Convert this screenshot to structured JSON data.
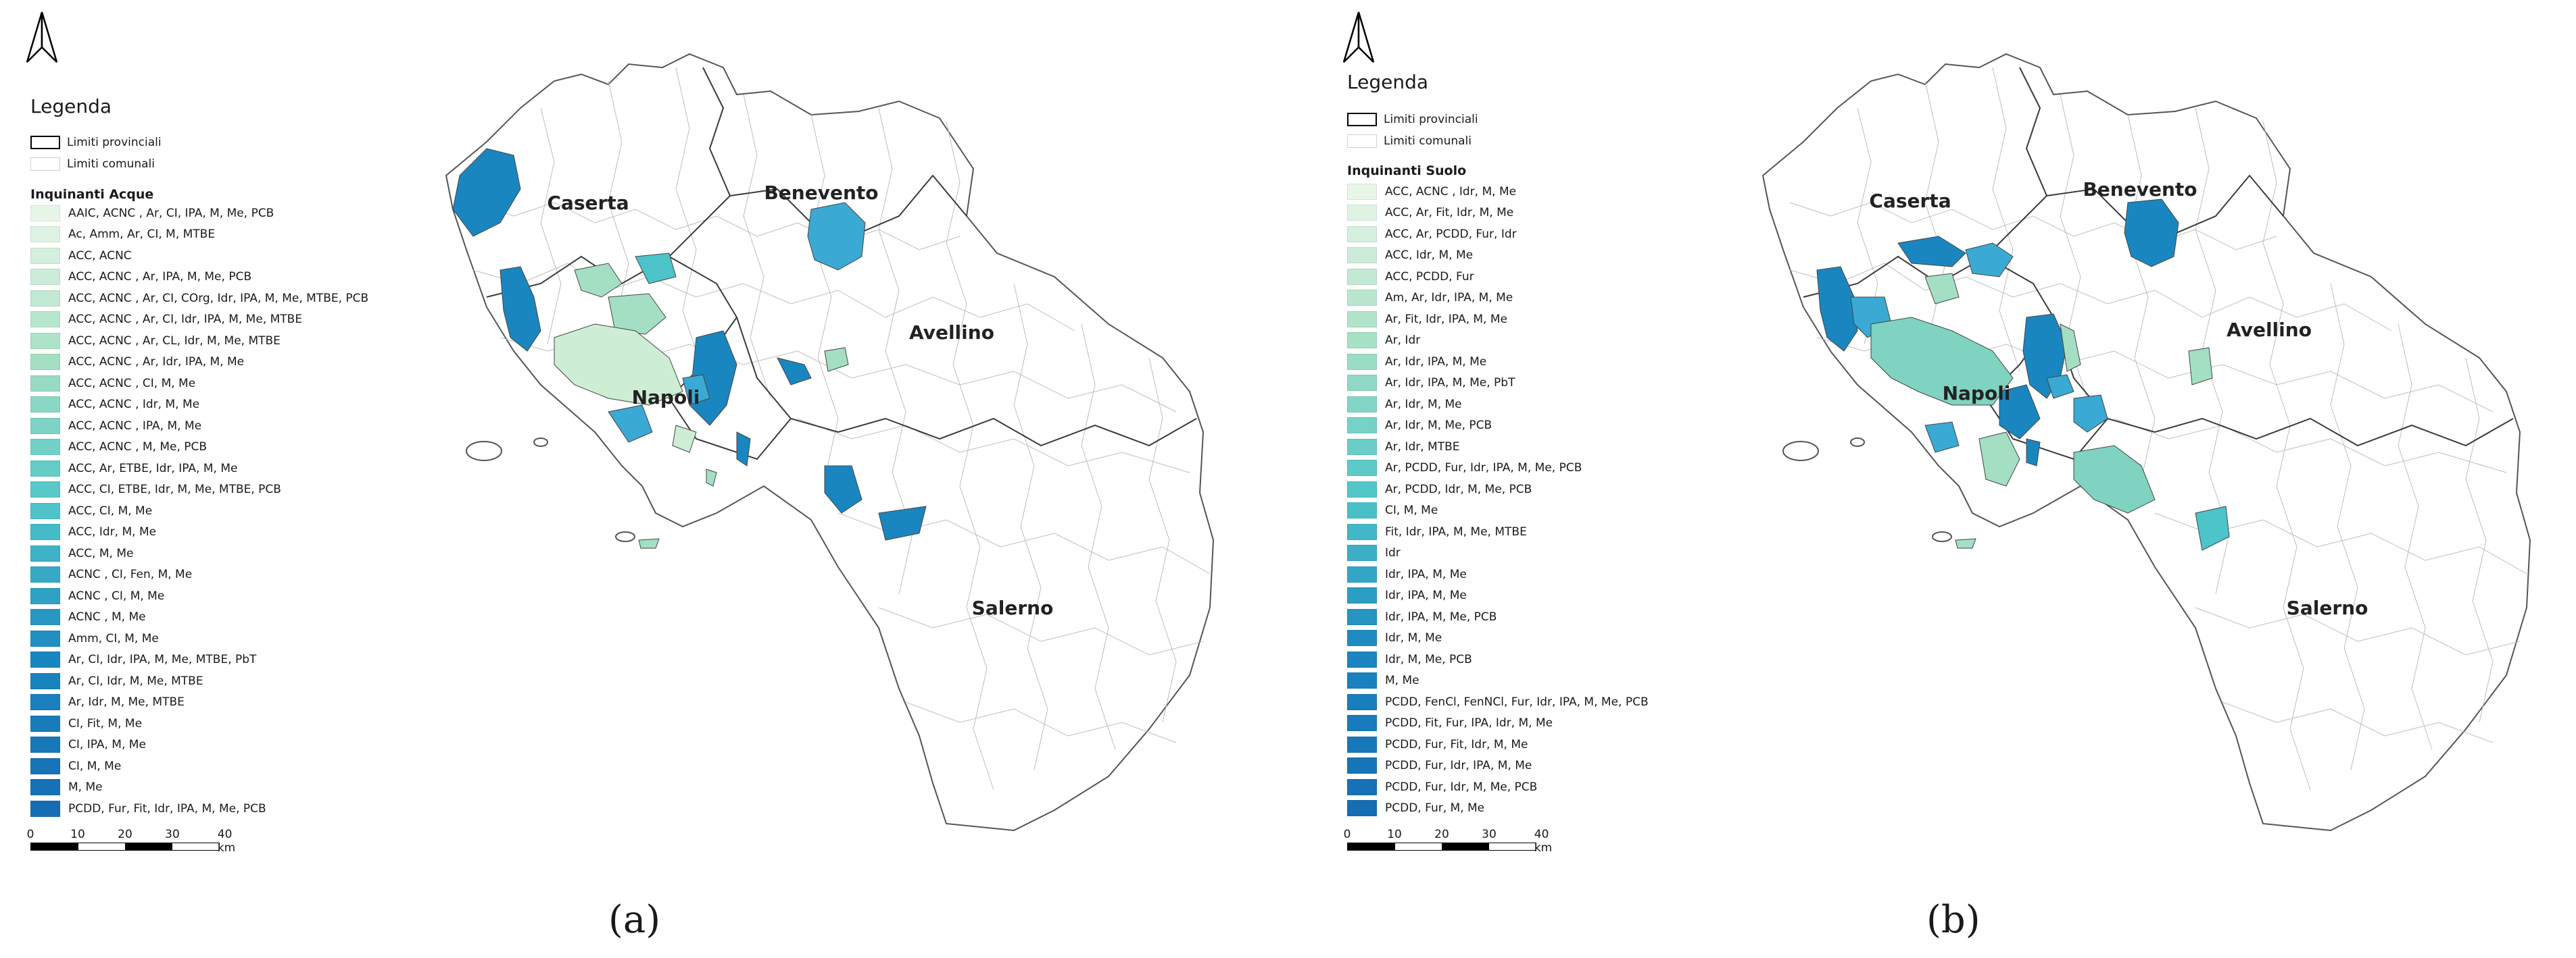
{
  "legend_title": "Legenda",
  "boundary_labels": [
    "Limiti provinciali",
    "Limiti comunali"
  ],
  "province_labels": [
    "Caserta",
    "Benevento",
    "Napoli",
    "Avellino",
    "Salerno"
  ],
  "scale": {
    "labels": [
      "0",
      "10",
      "20",
      "30",
      "40 km"
    ]
  },
  "icons": {
    "north": "north-arrow-icon"
  },
  "panels": [
    {
      "caption": "(a)",
      "legend_heading": "Inquinanti Acque",
      "categories": [
        "AAIC, ACNC , Ar, CI, IPA, M, Me, PCB",
        "Ac, Amm, Ar, CI, M, MTBE",
        "ACC, ACNC",
        "ACC, ACNC , Ar,  IPA, M, Me, PCB",
        "ACC, ACNC , Ar, CI, COrg, Idr, IPA, M, Me, MTBE, PCB",
        "ACC, ACNC , Ar, CI, Idr, IPA, M, Me, MTBE",
        "ACC, ACNC , Ar, CL, Idr, M, Me, MTBE",
        "ACC, ACNC , Ar, Idr, IPA, M, Me",
        "ACC, ACNC , CI, M, Me",
        "ACC, ACNC , Idr, M, Me",
        "ACC, ACNC , IPA, M, Me",
        "ACC, ACNC , M, Me, PCB",
        "ACC, Ar, ETBE, Idr, IPA, M, Me",
        "ACC, CI, ETBE, Idr, M, Me, MTBE, PCB",
        "ACC, CI, M, Me",
        "ACC, Idr, M, Me",
        "ACC, M, Me",
        "ACNC , CI, Fen, M, Me",
        "ACNC , CI, M, Me",
        "ACNC , M, Me",
        "Amm, CI, M, Me",
        "Ar, CI, Idr, IPA, M, Me, MTBE, PbT",
        "Ar, CI, Idr, M, Me, MTBE",
        "Ar, Idr, M, Me, MTBE",
        "CI, Fit, M, Me",
        "CI, IPA, M, Me",
        "CI, M, Me",
        "M, Me",
        "PCDD, Fur, Fit, Idr, IPA, M, Me, PCB"
      ]
    },
    {
      "caption": "(b)",
      "legend_heading": "Inquinanti Suolo",
      "categories": [
        "ACC, ACNC , Idr, M, Me",
        "ACC, Ar, Fit, Idr, M, Me",
        "ACC, Ar, PCDD, Fur, Idr",
        "ACC, Idr, M, Me",
        "ACC, PCDD, Fur",
        "Am, Ar, Idr, IPA, M, Me",
        "Ar, Fit, Idr, IPA,  M, Me",
        "Ar, Idr",
        "Ar, Idr, IPA, M, Me",
        "Ar, Idr, IPA, M, Me, PbT",
        "Ar, Idr, M, Me",
        "Ar, Idr, M, Me, PCB",
        "Ar, Idr, MTBE",
        "Ar, PCDD, Fur, Idr, IPA, M, Me, PCB",
        "Ar, PCDD, Idr, M, Me, PCB",
        "CI, M, Me",
        "Fit, Idr, IPA, M, Me, MTBE",
        "Idr",
        "Idr, IPA,  M, Me",
        "Idr, IPA, M, Me",
        "Idr, IPA, M, Me, PCB",
        "Idr, M, Me",
        "Idr, M, Me, PCB",
        "M, Me",
        "PCDD, FenCl, FenNCl, Fur, Idr, IPA, M, Me, PCB",
        "PCDD, Fit, Fur, IPA, Idr, M, Me",
        "PCDD, Fur, Fit, Idr, M, Me",
        "PCDD, Fur, Idr, IPA, M, Me",
        "PCDD, Fur, Idr, M, Me, PCB",
        "PCDD, Fur, M, Me"
      ]
    }
  ]
}
